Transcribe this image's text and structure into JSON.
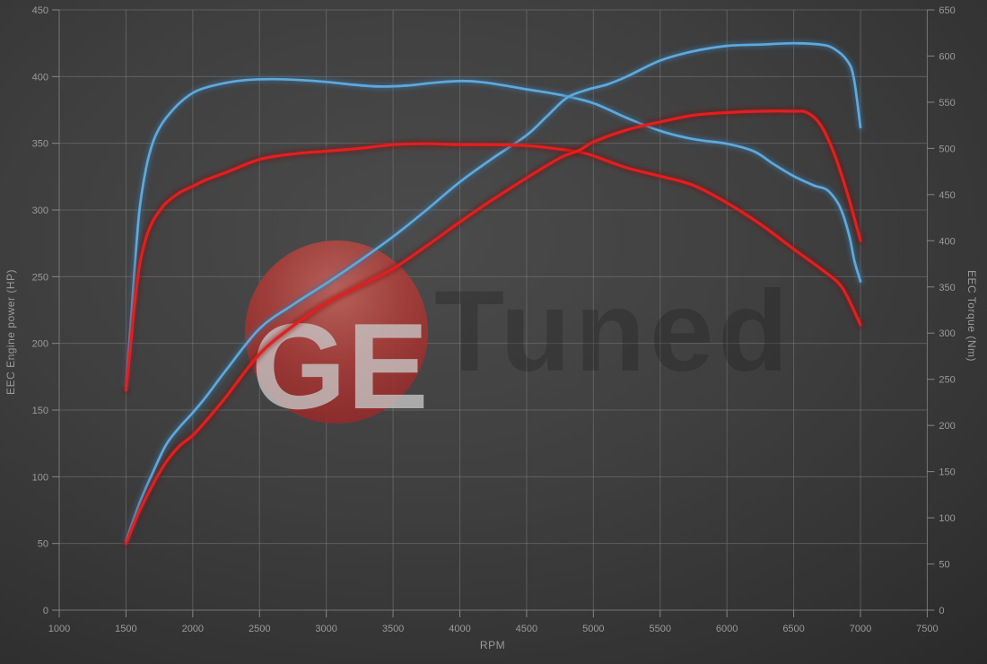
{
  "chart_data": {
    "type": "line",
    "title": "",
    "x_axis": {
      "label": "RPM",
      "min": 1000,
      "max": 7500,
      "ticks": [
        1000,
        1500,
        2000,
        2500,
        3000,
        3500,
        4000,
        4500,
        5000,
        5500,
        6000,
        6500,
        7000,
        7500
      ]
    },
    "y_axis_left": {
      "label": "EEC Engine power (HP)",
      "min": 0,
      "max": 450,
      "ticks": [
        0,
        50,
        100,
        150,
        200,
        250,
        300,
        350,
        400,
        450
      ]
    },
    "y_axis_right": {
      "label": "EEC Torque (Nm)",
      "min": 0,
      "max": 650,
      "ticks": [
        0,
        50,
        100,
        150,
        200,
        250,
        300,
        350,
        400,
        450,
        500,
        550,
        600,
        650
      ]
    },
    "grid": true,
    "legend": "none",
    "series": [
      {
        "name": "torque_blue",
        "axis": "right",
        "unit": "Nm",
        "color": "#5fa9dc",
        "glow": "#39759f",
        "points": [
          [
            1500,
            243
          ],
          [
            1530,
            300
          ],
          [
            1560,
            360
          ],
          [
            1600,
            432
          ],
          [
            1650,
            478
          ],
          [
            1700,
            506
          ],
          [
            1750,
            522
          ],
          [
            1800,
            533
          ],
          [
            1900,
            549
          ],
          [
            2000,
            560
          ],
          [
            2100,
            566
          ],
          [
            2250,
            571
          ],
          [
            2400,
            574
          ],
          [
            2600,
            575
          ],
          [
            2800,
            574
          ],
          [
            3000,
            572
          ],
          [
            3200,
            569
          ],
          [
            3400,
            567
          ],
          [
            3600,
            568
          ],
          [
            3800,
            571
          ],
          [
            4000,
            573
          ],
          [
            4150,
            572
          ],
          [
            4300,
            569
          ],
          [
            4500,
            564
          ],
          [
            4750,
            558
          ],
          [
            5000,
            549
          ],
          [
            5250,
            533
          ],
          [
            5500,
            519
          ],
          [
            5750,
            510
          ],
          [
            6000,
            505
          ],
          [
            6200,
            497
          ],
          [
            6350,
            483
          ],
          [
            6500,
            470
          ],
          [
            6650,
            460
          ],
          [
            6750,
            455
          ],
          [
            6830,
            441
          ],
          [
            6875,
            426
          ],
          [
            6920,
            403
          ],
          [
            6955,
            378
          ],
          [
            7000,
            356
          ]
        ]
      },
      {
        "name": "power_blue",
        "axis": "left",
        "unit": "HP",
        "color": "#5fa9dc",
        "glow": "#39759f",
        "points": [
          [
            1500,
            52
          ],
          [
            1600,
            80
          ],
          [
            1700,
            103
          ],
          [
            1800,
            124
          ],
          [
            1900,
            137
          ],
          [
            2000,
            148
          ],
          [
            2100,
            160
          ],
          [
            2250,
            180
          ],
          [
            2500,
            211
          ],
          [
            2750,
            229
          ],
          [
            3000,
            245
          ],
          [
            3250,
            262
          ],
          [
            3500,
            280
          ],
          [
            3750,
            300
          ],
          [
            4000,
            321
          ],
          [
            4250,
            339
          ],
          [
            4500,
            356
          ],
          [
            4650,
            370
          ],
          [
            4800,
            384
          ],
          [
            4950,
            390
          ],
          [
            5100,
            394
          ],
          [
            5250,
            400
          ],
          [
            5500,
            412
          ],
          [
            5750,
            419
          ],
          [
            6000,
            423
          ],
          [
            6250,
            424
          ],
          [
            6500,
            425
          ],
          [
            6700,
            424
          ],
          [
            6800,
            421
          ],
          [
            6900,
            412
          ],
          [
            6950,
            399
          ],
          [
            7000,
            362
          ]
        ]
      },
      {
        "name": "torque_red",
        "axis": "right",
        "unit": "Nm",
        "color": "#e41e1e",
        "glow": "#7e1010",
        "points": [
          [
            1500,
            238
          ],
          [
            1530,
            280
          ],
          [
            1560,
            325
          ],
          [
            1600,
            372
          ],
          [
            1650,
            403
          ],
          [
            1700,
            421
          ],
          [
            1750,
            432
          ],
          [
            1800,
            441
          ],
          [
            1900,
            452
          ],
          [
            2000,
            459
          ],
          [
            2100,
            466
          ],
          [
            2250,
            474
          ],
          [
            2500,
            488
          ],
          [
            2750,
            494
          ],
          [
            3000,
            497
          ],
          [
            3250,
            500
          ],
          [
            3500,
            504
          ],
          [
            3750,
            505
          ],
          [
            4000,
            504
          ],
          [
            4250,
            504
          ],
          [
            4500,
            503
          ],
          [
            4700,
            500
          ],
          [
            4900,
            496
          ],
          [
            5000,
            492
          ],
          [
            5250,
            479
          ],
          [
            5500,
            470
          ],
          [
            5750,
            460
          ],
          [
            6000,
            441
          ],
          [
            6250,
            418
          ],
          [
            6500,
            391
          ],
          [
            6700,
            370
          ],
          [
            6830,
            355
          ],
          [
            6900,
            340
          ],
          [
            7000,
            309
          ]
        ]
      },
      {
        "name": "power_red",
        "axis": "left",
        "unit": "HP",
        "color": "#e41e1e",
        "glow": "#7e1010",
        "points": [
          [
            1500,
            50
          ],
          [
            1600,
            74
          ],
          [
            1700,
            94
          ],
          [
            1800,
            111
          ],
          [
            1900,
            123
          ],
          [
            2000,
            131
          ],
          [
            2100,
            142
          ],
          [
            2250,
            160
          ],
          [
            2500,
            192
          ],
          [
            2750,
            213
          ],
          [
            3000,
            230
          ],
          [
            3250,
            243
          ],
          [
            3500,
            256
          ],
          [
            3750,
            273
          ],
          [
            4000,
            291
          ],
          [
            4250,
            308
          ],
          [
            4500,
            324
          ],
          [
            4750,
            339
          ],
          [
            4900,
            345
          ],
          [
            5000,
            351
          ],
          [
            5250,
            360
          ],
          [
            5500,
            366
          ],
          [
            5750,
            371
          ],
          [
            6000,
            373
          ],
          [
            6250,
            374
          ],
          [
            6500,
            374
          ],
          [
            6600,
            373
          ],
          [
            6700,
            364
          ],
          [
            6800,
            343
          ],
          [
            6900,
            313
          ],
          [
            7000,
            277
          ]
        ]
      }
    ]
  },
  "watermark": {
    "text_light": "GE",
    "text_dark": "Tuned",
    "circle_color": "#a23434"
  },
  "colors": {
    "background_center": "#4b4b4b",
    "background_edge": "#2a2a2a",
    "gridline": "#808080",
    "axis_line": "#999999",
    "tick_text": "#9a9a9a",
    "blue_curve": "#5fa9dc",
    "red_curve": "#e41e1e",
    "watermark_light_text": "#c8c8c8",
    "watermark_dark_text": "#141414"
  }
}
